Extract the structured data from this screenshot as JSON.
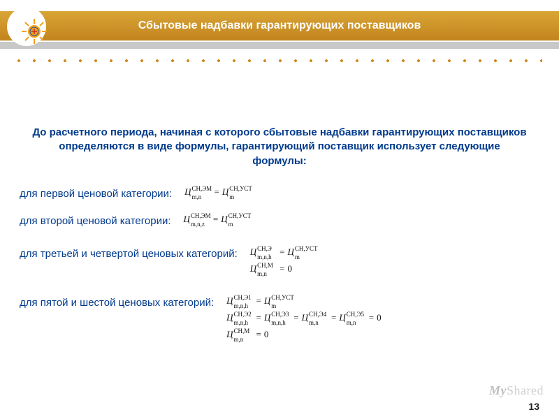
{
  "header": {
    "title": "Сбытовые надбавки гарантирующих поставщиков",
    "colors": {
      "goldTop": "#d9a536",
      "goldBottom": "#c2841e",
      "gray": "#c8c8c8",
      "dot": "#cf8a20",
      "titleText": "#ffffff"
    },
    "logo": {
      "sunColor": "#f2a11a",
      "plusColor": "#1b4ea6",
      "ringColor": "#1b4ea6"
    }
  },
  "intro": "До расчетного периода, начиная с которого сбытовые надбавки гарантирующих поставщиков определяются в виде формулы, гарантирующий поставщик использует следующие формулы:",
  "textColor": "#003a8c",
  "rows": [
    {
      "label": "для первой ценовой категории:",
      "formulas": [
        {
          "lhs": {
            "sup": "СН,ЭМ",
            "sub": "m,n"
          },
          "rhs": {
            "sup": "СН,УСТ",
            "sub": "m"
          }
        }
      ]
    },
    {
      "label": "для второй  ценовой категории:",
      "formulas": [
        {
          "lhs": {
            "sup": "СН,ЭМ",
            "sub": "m,n,z"
          },
          "rhs": {
            "sup": "СН,УСТ",
            "sub": "m"
          }
        }
      ]
    },
    {
      "label": "для третьей и четвертой ценовых категорий:",
      "formulas": [
        {
          "lhs": {
            "sup": "СН,Э",
            "sub": "m,n,h"
          },
          "rhs": {
            "sup": "СН,УСТ",
            "sub": "m"
          }
        },
        {
          "lhs": {
            "sup": "СН,М",
            "sub": "m,n"
          },
          "zero": true
        }
      ]
    },
    {
      "label": "для пятой и шестой ценовых категорий:",
      "formulas": [
        {
          "lhs": {
            "sup": "СН,Э1",
            "sub": "m,n,h"
          },
          "rhs": {
            "sup": "СН,УСТ",
            "sub": "m"
          }
        },
        {
          "chain": [
            {
              "sup": "СН,Э2",
              "sub": "m,n,h"
            },
            {
              "sup": "СН,Э3",
              "sub": "m,n,h"
            },
            {
              "sup": "СН,Э4",
              "sub": "m,n"
            },
            {
              "sup": "СН,Э5",
              "sub": "m,n"
            }
          ],
          "equalsZero": true
        },
        {
          "lhs": {
            "sup": "СН,М",
            "sub": "m,n"
          },
          "zero": true
        }
      ]
    }
  ],
  "pageNumber": "13",
  "watermark": {
    "prefix": "My",
    "suffix": "Shared"
  },
  "formulaBase": "Ц",
  "formulaFont": {
    "family": "Times New Roman",
    "sizePt": 13
  }
}
